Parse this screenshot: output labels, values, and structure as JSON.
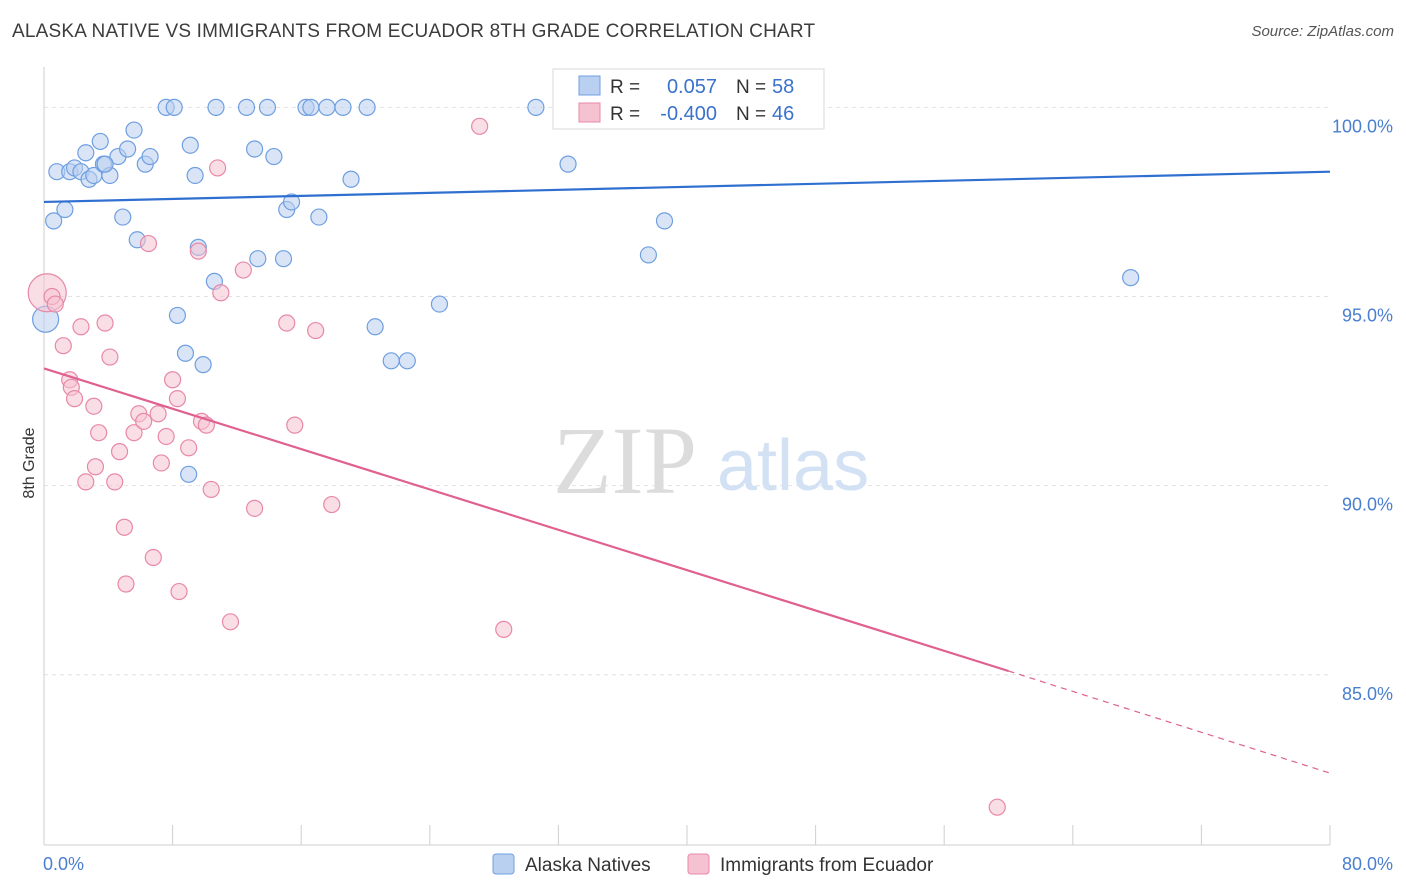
{
  "header": {
    "title": "ALASKA NATIVE VS IMMIGRANTS FROM ECUADOR 8TH GRADE CORRELATION CHART",
    "source": "Source: ZipAtlas.com"
  },
  "watermark": {
    "zip": "ZIP",
    "atlas": "atlas"
  },
  "legend_box": {
    "rows": [
      {
        "r_label": "R =",
        "r_value": "0.057",
        "n_label": "N =",
        "n_value": "58"
      },
      {
        "r_label": "R =",
        "r_value": "-0.400",
        "n_label": "N =",
        "n_value": "46"
      }
    ]
  },
  "bottom_legend": {
    "items": [
      "Alaska Natives",
      "Immigrants from Ecuador"
    ]
  },
  "chart_data": {
    "type": "scatter",
    "xlabel": "",
    "ylabel": "8th Grade",
    "xlim": [
      0,
      80
    ],
    "ylim": [
      80.5,
      101.2
    ],
    "x_tick_labels": [
      {
        "value": 0,
        "label": "0.0%"
      },
      {
        "value": 80,
        "label": "80.0%"
      }
    ],
    "y_ticks": [
      {
        "value": 100,
        "label": "100.0%"
      },
      {
        "value": 95,
        "label": "95.0%"
      },
      {
        "value": 90,
        "label": "90.0%"
      },
      {
        "value": 85,
        "label": "85.0%"
      }
    ],
    "x_minor_ticks": [
      0,
      8,
      16,
      24,
      32,
      40,
      48,
      56,
      64,
      72,
      80
    ],
    "grid": true,
    "series": [
      {
        "name": "Alaska Natives",
        "color": "#6f9fe0",
        "fill": "#b9d0f0",
        "trend": {
          "x1": 0,
          "y1": 97.5,
          "x2": 80,
          "y2": 98.3,
          "color": "#2f6fd0"
        },
        "points": [
          [
            0.1,
            94.4
          ],
          [
            0.6,
            97.0
          ],
          [
            0.8,
            98.3
          ],
          [
            1.3,
            97.3
          ],
          [
            1.6,
            98.3
          ],
          [
            1.9,
            98.4
          ],
          [
            2.3,
            98.3
          ],
          [
            2.6,
            98.8
          ],
          [
            2.8,
            98.1
          ],
          [
            3.1,
            98.2
          ],
          [
            3.5,
            99.1
          ],
          [
            3.7,
            98.5
          ],
          [
            4.1,
            98.2
          ],
          [
            4.6,
            98.7
          ],
          [
            4.9,
            97.1
          ],
          [
            5.2,
            98.9
          ],
          [
            5.6,
            99.4
          ],
          [
            5.8,
            96.5
          ],
          [
            6.3,
            98.5
          ],
          [
            6.6,
            98.7
          ],
          [
            7.6,
            100.0
          ],
          [
            8.1,
            100.0
          ],
          [
            8.3,
            94.5
          ],
          [
            8.8,
            93.5
          ],
          [
            9.0,
            90.3
          ],
          [
            9.1,
            99.0
          ],
          [
            9.4,
            98.2
          ],
          [
            9.6,
            96.3
          ],
          [
            9.9,
            93.2
          ],
          [
            10.6,
            95.4
          ],
          [
            10.7,
            100.0
          ],
          [
            12.6,
            100.0
          ],
          [
            13.1,
            98.9
          ],
          [
            13.3,
            96.0
          ],
          [
            13.9,
            100.0
          ],
          [
            14.3,
            98.7
          ],
          [
            14.9,
            96.0
          ],
          [
            15.1,
            97.3
          ],
          [
            15.4,
            97.5
          ],
          [
            16.3,
            100.0
          ],
          [
            17.1,
            97.1
          ],
          [
            17.6,
            100.0
          ],
          [
            18.6,
            100.0
          ],
          [
            19.1,
            98.1
          ],
          [
            20.1,
            100.0
          ],
          [
            20.6,
            94.2
          ],
          [
            21.6,
            93.3
          ],
          [
            22.6,
            93.3
          ],
          [
            24.6,
            94.8
          ],
          [
            30.6,
            100.0
          ],
          [
            32.6,
            98.5
          ],
          [
            37.6,
            96.1
          ],
          [
            38.6,
            97.0
          ],
          [
            44.6,
            100.0
          ],
          [
            45.1,
            100.0
          ],
          [
            67.6,
            95.5
          ],
          [
            16.6,
            100.0
          ],
          [
            3.8,
            98.5
          ]
        ]
      },
      {
        "name": "Immigrants from Ecuador",
        "color": "#e888a8",
        "fill": "#f5c2d2",
        "trend": {
          "x1": 0,
          "y1": 93.1,
          "x2": 60,
          "y2": 85.1,
          "dash_to_x": 80,
          "dash_to_y": 82.4,
          "color": "#e06090"
        },
        "points": [
          [
            0.2,
            95.1
          ],
          [
            0.5,
            95.0
          ],
          [
            0.7,
            94.8
          ],
          [
            1.2,
            93.7
          ],
          [
            1.6,
            92.8
          ],
          [
            1.7,
            92.6
          ],
          [
            1.9,
            92.3
          ],
          [
            2.3,
            94.2
          ],
          [
            2.6,
            90.1
          ],
          [
            3.1,
            92.1
          ],
          [
            3.2,
            90.5
          ],
          [
            3.4,
            91.4
          ],
          [
            3.8,
            94.3
          ],
          [
            4.1,
            93.4
          ],
          [
            4.4,
            90.1
          ],
          [
            4.7,
            90.9
          ],
          [
            5.0,
            88.9
          ],
          [
            5.1,
            87.4
          ],
          [
            5.6,
            91.4
          ],
          [
            5.9,
            91.9
          ],
          [
            6.2,
            91.7
          ],
          [
            6.5,
            96.4
          ],
          [
            6.8,
            88.1
          ],
          [
            7.1,
            91.9
          ],
          [
            7.3,
            90.6
          ],
          [
            7.6,
            91.3
          ],
          [
            8.0,
            92.8
          ],
          [
            8.3,
            92.3
          ],
          [
            8.4,
            87.2
          ],
          [
            9.0,
            91.0
          ],
          [
            9.6,
            96.2
          ],
          [
            9.8,
            91.7
          ],
          [
            10.1,
            91.6
          ],
          [
            10.4,
            89.9
          ],
          [
            10.8,
            98.4
          ],
          [
            11.0,
            95.1
          ],
          [
            11.6,
            86.4
          ],
          [
            12.4,
            95.7
          ],
          [
            13.1,
            89.4
          ],
          [
            15.1,
            94.3
          ],
          [
            15.6,
            91.6
          ],
          [
            16.9,
            94.1
          ],
          [
            17.9,
            89.5
          ],
          [
            27.1,
            99.5
          ],
          [
            28.6,
            86.2
          ],
          [
            59.3,
            81.5
          ]
        ]
      }
    ]
  }
}
